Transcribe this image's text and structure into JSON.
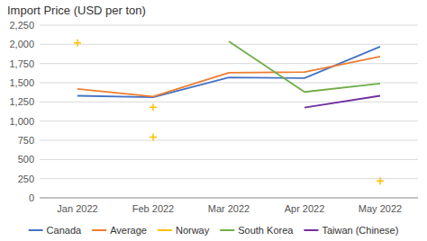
{
  "chart_data": {
    "type": "line",
    "title": "Import Price (USD per ton)",
    "categories": [
      "Jan 2022",
      "Feb 2022",
      "Mar 2022",
      "Apr 2022",
      "May 2022"
    ],
    "series": [
      {
        "name": "Canada",
        "color": "#4472C4",
        "values": [
          1330,
          1310,
          1570,
          1560,
          1970
        ]
      },
      {
        "name": "Average",
        "color": "#ED7D31",
        "values": [
          1420,
          1320,
          1630,
          1640,
          1840
        ]
      },
      {
        "name": "Norway",
        "type": "scatter",
        "marker": "plus",
        "color": "#FFC000",
        "x": [
          "Jan 2022",
          "Feb 2022",
          "Feb 2022",
          "May 2022"
        ],
        "values": [
          2020,
          1180,
          790,
          220
        ]
      },
      {
        "name": "South Korea",
        "color": "#70AD47",
        "values": [
          null,
          null,
          2040,
          1380,
          1490
        ]
      },
      {
        "name": "Taiwan (Chinese)",
        "color": "#7030A0",
        "values": [
          null,
          null,
          null,
          1175,
          1330
        ]
      }
    ],
    "ylim": [
      0,
      2250
    ],
    "yticks": [
      0,
      250,
      500,
      750,
      {
        "value": 1000,
        "label": "1,000"
      },
      {
        "value": 1250,
        "label": "1,250"
      },
      {
        "value": 1500,
        "label": "1,500"
      },
      {
        "value": 1750,
        "label": "1,750"
      },
      {
        "value": 2000,
        "label": "2,000"
      },
      {
        "value": 2250,
        "label": "2,250"
      }
    ],
    "grid": true,
    "legend": "bottom"
  }
}
